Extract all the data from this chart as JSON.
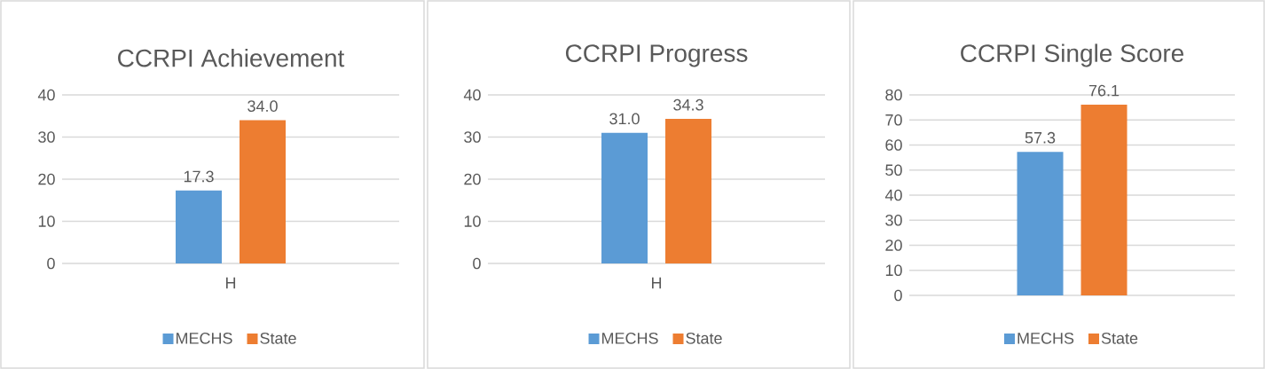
{
  "chart_data": [
    {
      "type": "bar",
      "title": "CCRPI Achievement",
      "categories": [
        "H"
      ],
      "ylim": [
        0,
        40
      ],
      "yticks": [
        0,
        10,
        20,
        30,
        40
      ],
      "grid": "y",
      "legend": "bottom",
      "series": [
        {
          "name": "MECHS",
          "color": "#5b9bd5",
          "values": [
            17.3
          ],
          "value_labels": [
            "17.3"
          ]
        },
        {
          "name": "State",
          "color": "#ed7d31",
          "values": [
            34.0
          ],
          "value_labels": [
            "34.0"
          ]
        }
      ]
    },
    {
      "type": "bar",
      "title": "CCRPI Progress",
      "categories": [
        "H"
      ],
      "ylim": [
        0,
        40
      ],
      "yticks": [
        0,
        10,
        20,
        30,
        40
      ],
      "grid": "y",
      "legend": "bottom",
      "series": [
        {
          "name": "MECHS",
          "color": "#5b9bd5",
          "values": [
            31.0
          ],
          "value_labels": [
            "31.0"
          ]
        },
        {
          "name": "State",
          "color": "#ed7d31",
          "values": [
            34.3
          ],
          "value_labels": [
            "34.3"
          ]
        }
      ]
    },
    {
      "type": "bar",
      "title": "CCRPI Single Score",
      "categories": [
        null
      ],
      "ylim": [
        0,
        80
      ],
      "yticks": [
        0,
        10,
        20,
        30,
        40,
        50,
        60,
        70,
        80
      ],
      "grid": "y",
      "legend": "bottom",
      "series": [
        {
          "name": "MECHS",
          "color": "#5b9bd5",
          "values": [
            57.3
          ],
          "value_labels": [
            "57.3"
          ]
        },
        {
          "name": "State",
          "color": "#ed7d31",
          "values": [
            76.1
          ],
          "value_labels": [
            "76.1"
          ]
        }
      ]
    }
  ]
}
